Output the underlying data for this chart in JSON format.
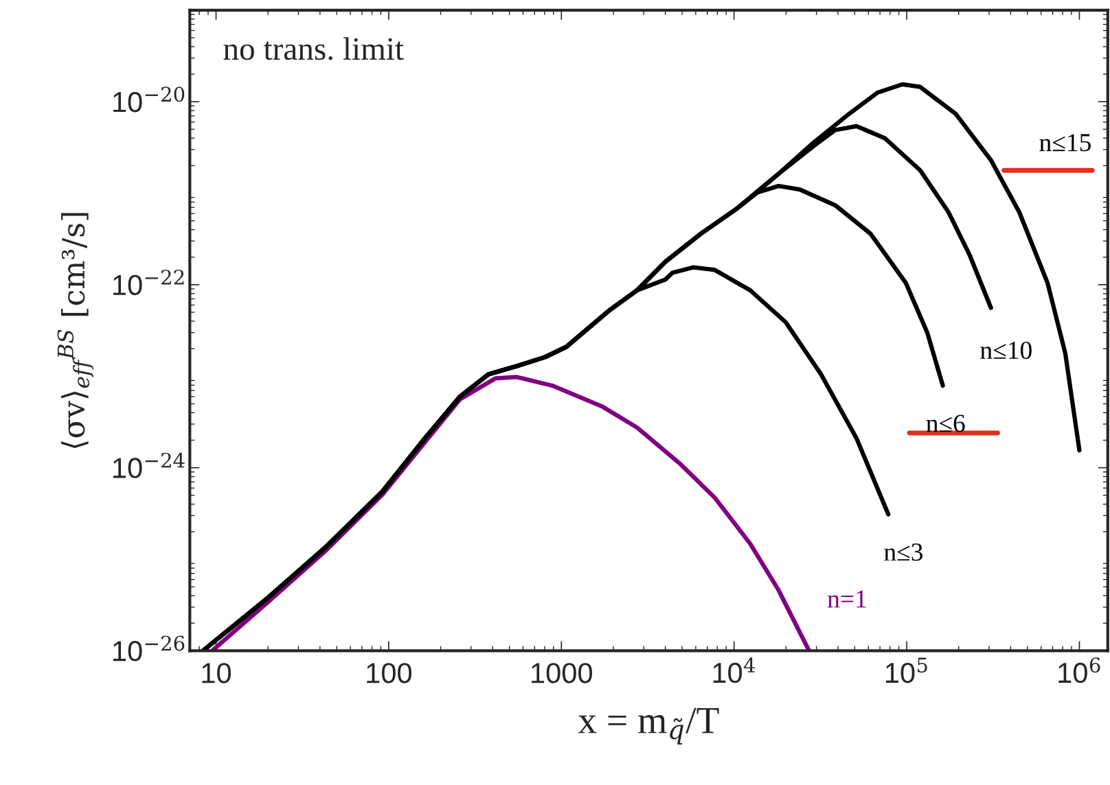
{
  "chart_data": {
    "type": "line",
    "xlabel": "x = m$_{q̃}$/T",
    "ylabel": "⟨σv⟩$_{eff}$$^{BS}$ [cm³/s]",
    "log": "xy",
    "grid": false,
    "legend": false,
    "line_style": "solid",
    "marker": "none",
    "annotations": [
      "no trans. limit"
    ],
    "xlim": [
      7.05,
      1460000
    ],
    "ylim": [
      1e-26,
      1e-19
    ],
    "xticks": [
      10,
      100,
      1000,
      {
        "value": 10000,
        "label": "10$^{4}$"
      },
      {
        "value": 100000,
        "label": "10$^{5}$"
      },
      {
        "value": 1000000,
        "label": "10$^{6}$"
      }
    ],
    "yticks": [
      {
        "value": 1e-26,
        "label": "10$^{−26}$"
      },
      {
        "value": 1e-24,
        "label": "10$^{−24}$"
      },
      {
        "value": 1e-22,
        "label": "10$^{−22}$"
      },
      {
        "value": 1e-20,
        "label": "10$^{−20}$"
      }
    ],
    "series": [
      {
        "name": "n=1",
        "color": "#800080",
        "x": [
          9.5,
          20.3,
          43,
          92,
          162,
          259,
          416,
          552,
          885,
          1714,
          2746,
          4830,
          7740,
          12400,
          18100,
          27200
        ],
        "values": [
          1e-26,
          3.5e-26,
          1.23e-25,
          5.1e-25,
          1.9e-24,
          5.6e-24,
          9.5e-24,
          9.8e-24,
          7.9e-24,
          4.7e-24,
          2.75e-24,
          1.12e-24,
          4.7e-25,
          1.48e-25,
          4.6e-26,
          1e-26
        ]
      },
      {
        "name": "n≤3",
        "color": "#000000",
        "x": [
          8.4,
          20.3,
          43,
          92,
          162,
          259,
          378,
          552,
          805,
          1070,
          1419,
          1884,
          2746,
          4000,
          4400,
          5830,
          7740,
          12400,
          19900,
          31900,
          51200,
          78200
        ],
        "values": [
          1e-26,
          3.9e-26,
          1.35e-25,
          5.5e-25,
          2.1e-24,
          6e-24,
          1.05e-23,
          1.29e-23,
          1.62e-23,
          2.1e-23,
          3.3e-23,
          5.2e-23,
          8.7e-23,
          1.14e-22,
          1.35e-22,
          1.55e-22,
          1.45e-22,
          8.7e-23,
          3.9e-23,
          1.05e-23,
          2.1e-24,
          3.1e-25
        ]
      },
      {
        "name": "n≤6",
        "color": "#000000",
        "x": [
          8.4,
          20.3,
          43,
          92,
          162,
          259,
          378,
          552,
          805,
          1070,
          1419,
          1884,
          2746,
          4000,
          6410,
          10280,
          13650,
          18100,
          24000,
          38500,
          61800,
          99000,
          131500,
          161800
        ],
        "values": [
          1e-26,
          3.9e-26,
          1.35e-25,
          5.5e-25,
          2.1e-24,
          6e-24,
          1.05e-23,
          1.29e-23,
          1.62e-23,
          2.1e-23,
          3.3e-23,
          5.2e-23,
          8.7e-23,
          1.78e-22,
          3.6e-22,
          6.7e-22,
          1.02e-21,
          1.2e-21,
          1.1e-21,
          7.4e-22,
          3.6e-22,
          1.04e-22,
          3e-23,
          7.9e-24
        ]
      },
      {
        "name": "n≤10",
        "color": "#000000",
        "x": [
          8.4,
          20.3,
          43,
          92,
          162,
          259,
          378,
          552,
          805,
          1070,
          1419,
          1884,
          2746,
          4000,
          6410,
          10280,
          18100,
          29000,
          38500,
          51200,
          74600,
          119700,
          174600,
          231700,
          307300
        ],
        "values": [
          1e-26,
          3.9e-26,
          1.35e-25,
          5.5e-25,
          2.1e-24,
          6e-24,
          1.05e-23,
          1.29e-23,
          1.62e-23,
          2.1e-23,
          3.3e-23,
          5.2e-23,
          8.7e-23,
          1.78e-22,
          3.6e-22,
          6.7e-22,
          1.63e-21,
          3.3e-21,
          4.9e-21,
          5.4e-21,
          4e-21,
          1.78e-21,
          6.2e-22,
          2.1e-22,
          5.6e-23
        ]
      },
      {
        "name": "n≤15",
        "color": "#000000",
        "x": [
          8.4,
          20.3,
          43,
          92,
          162,
          259,
          378,
          552,
          805,
          1070,
          1419,
          1884,
          2746,
          4000,
          6410,
          10280,
          18100,
          29000,
          46500,
          67900,
          94400,
          119700,
          191800,
          307300,
          448700,
          654600,
          828500,
          1000000
        ],
        "values": [
          1e-26,
          3.9e-26,
          1.35e-25,
          5.5e-25,
          2.1e-24,
          6e-24,
          1.05e-23,
          1.29e-23,
          1.62e-23,
          2.1e-23,
          3.3e-23,
          5.2e-23,
          8.7e-23,
          1.78e-22,
          3.6e-22,
          6.7e-22,
          1.63e-21,
          3.6e-21,
          7.4e-21,
          1.26e-20,
          1.55e-20,
          1.45e-20,
          7.4e-21,
          2.3e-21,
          6.2e-22,
          1.04e-22,
          1.78e-23,
          1.55e-24
        ]
      }
    ]
  }
}
